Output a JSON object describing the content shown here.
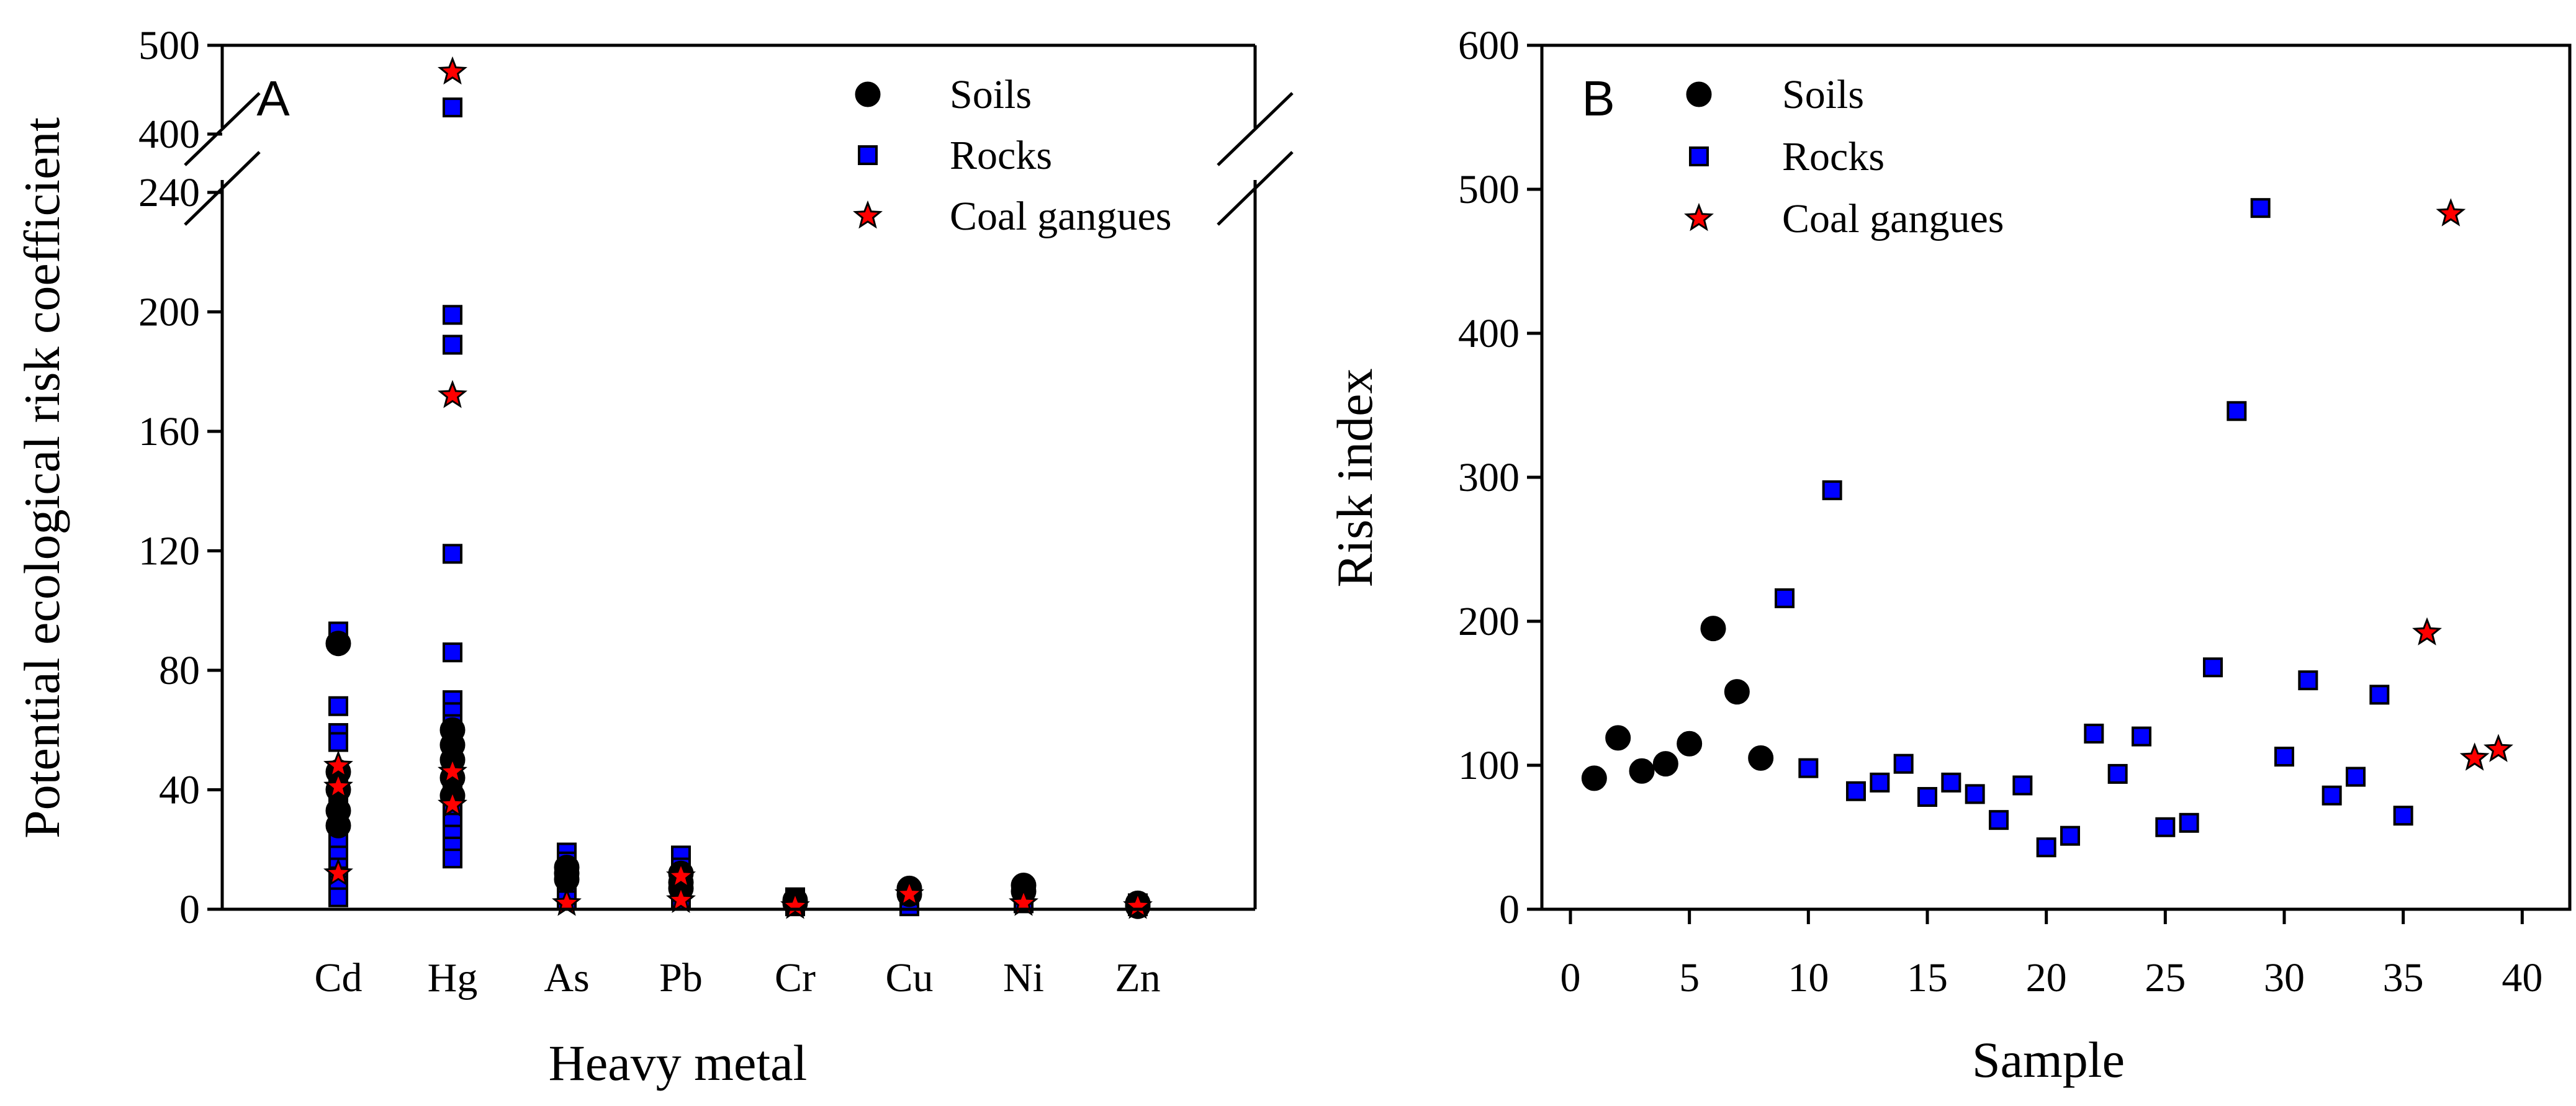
{
  "chart_data": [
    {
      "panel_label": "A",
      "type": "scatter",
      "xlabel": "Heavy metal",
      "ylabel": "Potential ecological risk coefficient",
      "categories": [
        "Cd",
        "Hg",
        "As",
        "Pb",
        "Cr",
        "Cu",
        "Ni",
        "Zn"
      ],
      "y_ticks_lower": [
        "0",
        "40",
        "80",
        "120",
        "160",
        "200",
        "240"
      ],
      "y_ticks_upper": [
        "400",
        "500"
      ],
      "ylim_lower": [
        0,
        240
      ],
      "ylim_upper": [
        400,
        500
      ],
      "axis_break": "between 240 and 400",
      "legend": [
        "Soils",
        "Rocks",
        "Coal gangues"
      ],
      "legend_position": "top-right",
      "series": [
        {
          "name": "Soils",
          "marker": "circle",
          "color": "#000000",
          "points": [
            {
              "category": "Cd",
              "value": 89
            },
            {
              "category": "Cd",
              "value": 46
            },
            {
              "category": "Cd",
              "value": 40
            },
            {
              "category": "Cd",
              "value": 33
            },
            {
              "category": "Cd",
              "value": 28
            },
            {
              "category": "Hg",
              "value": 60
            },
            {
              "category": "Hg",
              "value": 55
            },
            {
              "category": "Hg",
              "value": 50
            },
            {
              "category": "Hg",
              "value": 44
            },
            {
              "category": "Hg",
              "value": 38
            },
            {
              "category": "As",
              "value": 14
            },
            {
              "category": "As",
              "value": 12
            },
            {
              "category": "As",
              "value": 10
            },
            {
              "category": "Pb",
              "value": 12
            },
            {
              "category": "Pb",
              "value": 9
            },
            {
              "category": "Pb",
              "value": 7
            },
            {
              "category": "Cr",
              "value": 3
            },
            {
              "category": "Cr",
              "value": 2
            },
            {
              "category": "Cu",
              "value": 7
            },
            {
              "category": "Cu",
              "value": 5
            },
            {
              "category": "Ni",
              "value": 8
            },
            {
              "category": "Ni",
              "value": 6
            },
            {
              "category": "Zn",
              "value": 2
            },
            {
              "category": "Zn",
              "value": 1
            }
          ]
        },
        {
          "name": "Rocks",
          "marker": "square",
          "color": "#0000ff",
          "points": [
            {
              "category": "Cd",
              "value": 93
            },
            {
              "category": "Cd",
              "value": 68
            },
            {
              "category": "Cd",
              "value": 59
            },
            {
              "category": "Cd",
              "value": 56
            },
            {
              "category": "Cd",
              "value": 45
            },
            {
              "category": "Cd",
              "value": 38
            },
            {
              "category": "Cd",
              "value": 34
            },
            {
              "category": "Cd",
              "value": 30
            },
            {
              "category": "Cd",
              "value": 26
            },
            {
              "category": "Cd",
              "value": 22
            },
            {
              "category": "Cd",
              "value": 18
            },
            {
              "category": "Cd",
              "value": 14
            },
            {
              "category": "Cd",
              "value": 11
            },
            {
              "category": "Cd",
              "value": 8
            },
            {
              "category": "Cd",
              "value": 4
            },
            {
              "category": "Hg",
              "value": 430
            },
            {
              "category": "Hg",
              "value": 199
            },
            {
              "category": "Hg",
              "value": 189
            },
            {
              "category": "Hg",
              "value": 119
            },
            {
              "category": "Hg",
              "value": 86
            },
            {
              "category": "Hg",
              "value": 70
            },
            {
              "category": "Hg",
              "value": 66
            },
            {
              "category": "Hg",
              "value": 62
            },
            {
              "category": "Hg",
              "value": 58
            },
            {
              "category": "Hg",
              "value": 54
            },
            {
              "category": "Hg",
              "value": 50
            },
            {
              "category": "Hg",
              "value": 46
            },
            {
              "category": "Hg",
              "value": 42
            },
            {
              "category": "Hg",
              "value": 38
            },
            {
              "category": "Hg",
              "value": 33
            },
            {
              "category": "Hg",
              "value": 29
            },
            {
              "category": "Hg",
              "value": 25
            },
            {
              "category": "Hg",
              "value": 21
            },
            {
              "category": "Hg",
              "value": 17
            },
            {
              "category": "As",
              "value": 19
            },
            {
              "category": "As",
              "value": 16
            },
            {
              "category": "As",
              "value": 13
            },
            {
              "category": "As",
              "value": 9
            },
            {
              "category": "As",
              "value": 6
            },
            {
              "category": "As",
              "value": 3
            },
            {
              "category": "Pb",
              "value": 18
            },
            {
              "category": "Pb",
              "value": 14
            },
            {
              "category": "Pb",
              "value": 10
            },
            {
              "category": "Pb",
              "value": 6
            },
            {
              "category": "Pb",
              "value": 3
            },
            {
              "category": "Cr",
              "value": 4
            },
            {
              "category": "Cr",
              "value": 2
            },
            {
              "category": "Cr",
              "value": 1
            },
            {
              "category": "Cu",
              "value": 5
            },
            {
              "category": "Cu",
              "value": 3
            },
            {
              "category": "Cu",
              "value": 1
            },
            {
              "category": "Ni",
              "value": 6
            },
            {
              "category": "Ni",
              "value": 4
            },
            {
              "category": "Ni",
              "value": 2
            },
            {
              "category": "Zn",
              "value": 2
            },
            {
              "category": "Zn",
              "value": 1
            }
          ]
        },
        {
          "name": "Coal gangues",
          "marker": "star",
          "color": "#ff0000",
          "points": [
            {
              "category": "Cd",
              "value": 48
            },
            {
              "category": "Cd",
              "value": 41
            },
            {
              "category": "Cd",
              "value": 12
            },
            {
              "category": "Hg",
              "value": 470
            },
            {
              "category": "Hg",
              "value": 172
            },
            {
              "category": "Hg",
              "value": 46
            },
            {
              "category": "Hg",
              "value": 35
            },
            {
              "category": "As",
              "value": 2
            },
            {
              "category": "Pb",
              "value": 11
            },
            {
              "category": "Pb",
              "value": 3
            },
            {
              "category": "Cr",
              "value": 1
            },
            {
              "category": "Cu",
              "value": 5
            },
            {
              "category": "Ni",
              "value": 2
            },
            {
              "category": "Zn",
              "value": 1
            }
          ]
        }
      ]
    },
    {
      "panel_label": "B",
      "type": "scatter",
      "xlabel": "Sample",
      "ylabel": "Risk index",
      "x_ticks": [
        "0",
        "5",
        "10",
        "15",
        "20",
        "25",
        "30",
        "35",
        "40"
      ],
      "y_ticks": [
        "0",
        "100",
        "200",
        "300",
        "400",
        "500",
        "600"
      ],
      "xlim": [
        -1.2,
        42
      ],
      "ylim": [
        0,
        600
      ],
      "legend": [
        "Soils",
        "Rocks",
        "Coal gangues"
      ],
      "legend_position": "top-left",
      "series": [
        {
          "name": "Soils",
          "marker": "circle",
          "color": "#000000",
          "x": [
            1,
            2,
            3,
            4,
            5,
            6,
            7,
            8
          ],
          "y": [
            91,
            119,
            96,
            101,
            115,
            195,
            151,
            105
          ]
        },
        {
          "name": "Rocks",
          "marker": "square",
          "color": "#0000ff",
          "x": [
            10,
            9,
            11,
            12,
            13,
            14,
            15,
            16,
            17,
            18,
            19,
            20,
            21,
            22,
            23,
            24,
            25,
            26,
            27,
            28,
            29,
            30,
            31,
            32,
            33,
            34,
            35
          ],
          "y": [
            98,
            216,
            291,
            82,
            88,
            101,
            78,
            88,
            80,
            62,
            86,
            43,
            51,
            122,
            94,
            120,
            57,
            60,
            168,
            346,
            487,
            106,
            159,
            79,
            92,
            149,
            65
          ]
        },
        {
          "name": "Coal gangues",
          "marker": "star",
          "color": "#ff0000",
          "x": [
            36,
            37,
            38,
            39
          ],
          "y": [
            192,
            483,
            105,
            111
          ]
        }
      ]
    }
  ]
}
